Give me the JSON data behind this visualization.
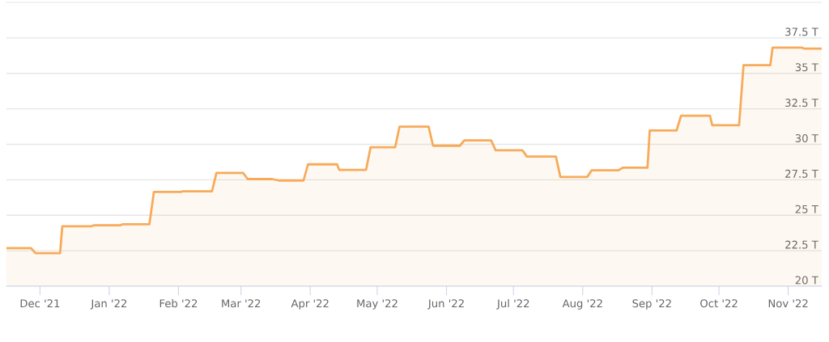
{
  "chart_data": {
    "type": "area",
    "x": [
      "2021-11-16",
      "2021-11-27",
      "2021-11-29",
      "2021-12-10",
      "2021-12-11",
      "2021-12-24",
      "2021-12-25",
      "2022-01-06",
      "2022-01-07",
      "2022-01-19",
      "2022-01-21",
      "2022-02-02",
      "2022-02-03",
      "2022-02-16",
      "2022-02-18",
      "2022-03-02",
      "2022-03-04",
      "2022-03-15",
      "2022-03-18",
      "2022-03-29",
      "2022-03-31",
      "2022-04-13",
      "2022-04-14",
      "2022-04-26",
      "2022-04-28",
      "2022-05-09",
      "2022-05-11",
      "2022-05-24",
      "2022-05-26",
      "2022-06-07",
      "2022-06-09",
      "2022-06-21",
      "2022-06-23",
      "2022-07-05",
      "2022-07-07",
      "2022-07-20",
      "2022-07-22",
      "2022-08-03",
      "2022-08-05",
      "2022-08-17",
      "2022-08-19",
      "2022-08-30",
      "2022-08-31",
      "2022-09-12",
      "2022-09-14",
      "2022-09-27",
      "2022-09-28",
      "2022-10-10",
      "2022-10-12",
      "2022-10-24",
      "2022-10-25",
      "2022-11-07",
      "2022-11-08",
      "2022-11-16"
    ],
    "series": [
      {
        "color": "#f7ab5a",
        "values": [
          22.69,
          22.69,
          22.33,
          22.33,
          24.22,
          24.22,
          24.29,
          24.29,
          24.37,
          24.37,
          26.65,
          26.65,
          26.69,
          26.69,
          27.98,
          27.98,
          27.55,
          27.55,
          27.45,
          27.45,
          28.59,
          28.59,
          28.2,
          28.2,
          29.79,
          29.79,
          31.25,
          31.25,
          29.9,
          29.9,
          30.28,
          30.28,
          29.58,
          29.58,
          29.14,
          29.14,
          27.7,
          27.7,
          28.17,
          28.17,
          28.36,
          28.36,
          30.97,
          30.97,
          32.01,
          32.01,
          31.35,
          31.35,
          35.58,
          35.58,
          36.82,
          36.82,
          36.75,
          36.75
        ]
      }
    ],
    "xlim": [
      "2021-11-16",
      "2022-11-16"
    ],
    "xticks": [
      {
        "value": "2021-12-01",
        "label": "Dec '21"
      },
      {
        "value": "2022-01-01",
        "label": "Jan '22"
      },
      {
        "value": "2022-02-01",
        "label": "Feb '22"
      },
      {
        "value": "2022-03-01",
        "label": "Mar '22"
      },
      {
        "value": "2022-04-01",
        "label": "Apr '22"
      },
      {
        "value": "2022-05-01",
        "label": "May '22"
      },
      {
        "value": "2022-06-01",
        "label": "Jun '22"
      },
      {
        "value": "2022-07-01",
        "label": "Jul '22"
      },
      {
        "value": "2022-08-01",
        "label": "Aug '22"
      },
      {
        "value": "2022-09-01",
        "label": "Sep '22"
      },
      {
        "value": "2022-10-01",
        "label": "Oct '22"
      },
      {
        "value": "2022-11-01",
        "label": "Nov '22"
      }
    ],
    "ylim": [
      20,
      40
    ],
    "yticks": [
      {
        "value": 20,
        "label": "20 T"
      },
      {
        "value": 22.5,
        "label": "22.5 T"
      },
      {
        "value": 25,
        "label": "25 T"
      },
      {
        "value": 27.5,
        "label": "27.5 T"
      },
      {
        "value": 30,
        "label": "30 T"
      },
      {
        "value": 32.5,
        "label": "32.5 T"
      },
      {
        "value": 35,
        "label": "35 T"
      },
      {
        "value": 37.5,
        "label": "37.5 T"
      }
    ],
    "grid": "y"
  }
}
